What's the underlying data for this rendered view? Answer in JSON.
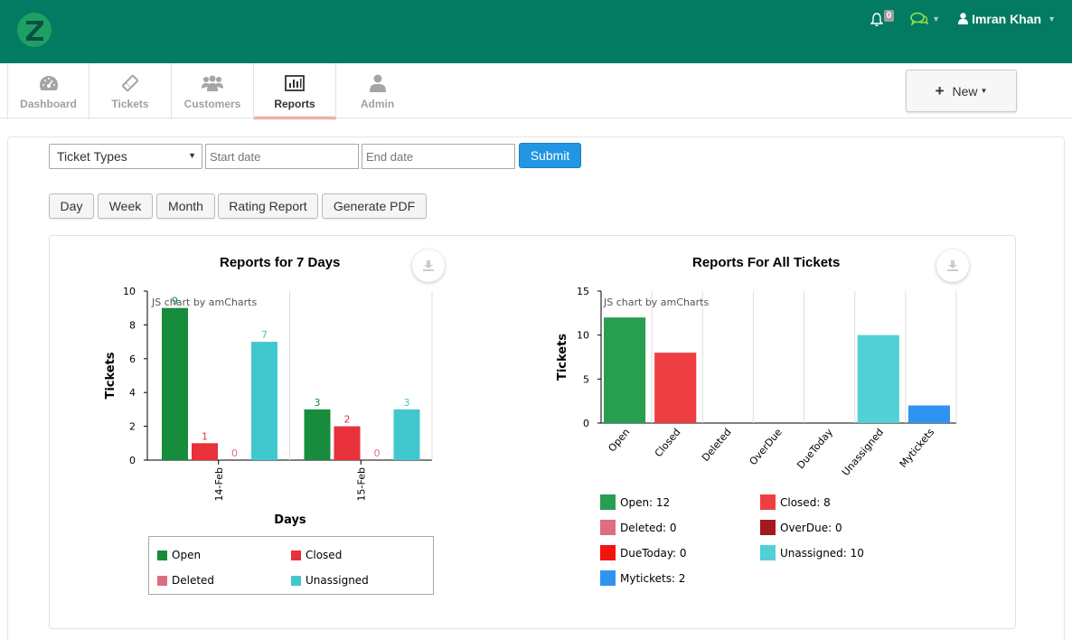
{
  "header": {
    "notification_count": "0",
    "user_name": "Imran Khan",
    "brand_color": "#037a62"
  },
  "nav": {
    "items": [
      {
        "label": "Dashboard",
        "icon": "dashboard-icon"
      },
      {
        "label": "Tickets",
        "icon": "ticket-icon"
      },
      {
        "label": "Customers",
        "icon": "users-icon"
      },
      {
        "label": "Reports",
        "icon": "bar-chart-icon",
        "active": true
      },
      {
        "label": "Admin",
        "icon": "user-icon"
      }
    ],
    "new_button": "New"
  },
  "filters": {
    "ticket_type": "Ticket Types",
    "start_placeholder": "Start date",
    "end_placeholder": "End date",
    "submit": "Submit"
  },
  "period_buttons": [
    "Day",
    "Week",
    "Month",
    "Rating Report",
    "Generate PDF"
  ],
  "credit": "JS chart by amCharts",
  "chart_data": [
    {
      "type": "bar",
      "title": "Reports for 7 Days",
      "xlabel": "Days",
      "ylabel": "Tickets",
      "ylim": [
        0,
        10
      ],
      "yticks": [
        "0",
        "2",
        "4",
        "6",
        "8",
        "10"
      ],
      "categories": [
        "14-Feb",
        "15-Feb"
      ],
      "series": [
        {
          "name": "Open",
          "values": [
            9,
            3
          ],
          "color": "#168c3c"
        },
        {
          "name": "Closed",
          "values": [
            1,
            2
          ],
          "color": "#e8313a"
        },
        {
          "name": "Deleted",
          "values": [
            0,
            0
          ],
          "color": "#dc6e80"
        },
        {
          "name": "Unassigned",
          "values": [
            7,
            3
          ],
          "color": "#41c7ce"
        }
      ]
    },
    {
      "type": "bar",
      "title": "Reports For All Tickets",
      "ylabel": "Tickets",
      "ylim": [
        0,
        15
      ],
      "yticks": [
        "0",
        "5",
        "10",
        "15"
      ],
      "categories": [
        "Open",
        "Closed",
        "Deleted",
        "OverDue",
        "DueToday",
        "Unassigned",
        "Mytickets"
      ],
      "values": [
        12,
        8,
        0,
        0,
        0,
        10,
        2
      ],
      "colors": [
        "#289e51",
        "#ef3e42",
        "#dd6e80",
        "#a01a1f",
        "#f2140d",
        "#52d0d5",
        "#2f93f2"
      ],
      "legend": [
        "Open: 12",
        "Closed: 8",
        "Deleted: 0",
        "OverDue: 0",
        "DueToday: 0",
        "Unassigned: 10",
        "Mytickets: 2"
      ]
    }
  ]
}
